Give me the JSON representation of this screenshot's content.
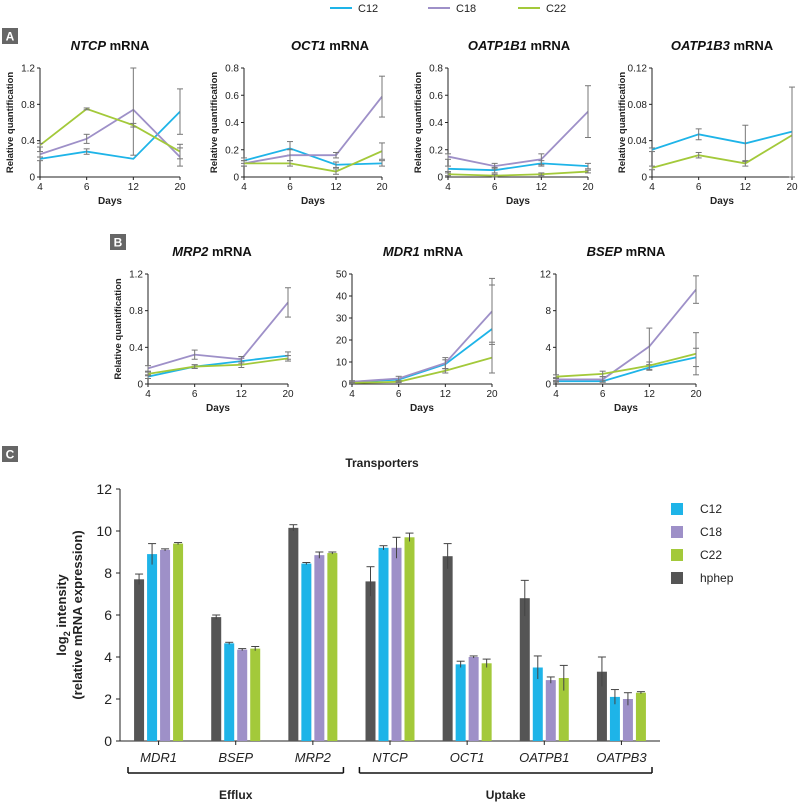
{
  "colors": {
    "C12": "#1eb4e8",
    "C18": "#9e90c8",
    "C22": "#a3c93a",
    "hphep": "#555555",
    "axis": "#222222",
    "error": "#777777"
  },
  "legend_top": [
    {
      "key": "C12",
      "label": "C12"
    },
    {
      "key": "C18",
      "label": "C18"
    },
    {
      "key": "C22",
      "label": "C22"
    }
  ],
  "panels": {
    "A": {
      "letter": "A"
    },
    "B": {
      "letter": "B"
    },
    "C": {
      "letter": "C"
    }
  },
  "line_charts": [
    {
      "id": "ntcp",
      "panel": "A",
      "gene": "NTCP",
      "suffix": " mRNA",
      "ylabel": "Relative quantification",
      "xlabel": "Days",
      "xcats": [
        "4",
        "6",
        "12",
        "20"
      ],
      "ylim": [
        0,
        1.2
      ],
      "yticks": [
        0,
        0.4,
        0.8,
        1.2
      ],
      "ytick_labels": [
        "0",
        "0.4",
        "0.8",
        "1.2"
      ],
      "series": [
        {
          "key": "C12",
          "values": [
            0.2,
            0.28,
            0.2,
            0.72
          ],
          "errors": [
            0.02,
            0.03,
            0.0,
            0.25
          ]
        },
        {
          "key": "C18",
          "values": [
            0.25,
            0.42,
            0.74,
            0.22
          ],
          "errors": [
            0.03,
            0.05,
            0.5,
            0.1
          ]
        },
        {
          "key": "C22",
          "values": [
            0.35,
            0.75,
            0.57,
            0.28
          ],
          "errors": [
            0.02,
            0.01,
            0.02,
            0.08
          ]
        }
      ]
    },
    {
      "id": "oct1",
      "panel": "A",
      "gene": "OCT1",
      "suffix": " mRNA",
      "ylabel": "Relative quantification",
      "xlabel": "Days",
      "xcats": [
        "4",
        "6",
        "12",
        "20"
      ],
      "ylim": [
        0,
        0.8
      ],
      "yticks": [
        0,
        0.2,
        0.4,
        0.6,
        0.8
      ],
      "ytick_labels": [
        "0",
        "0.2",
        "0.4",
        "0.6",
        "0.8"
      ],
      "series": [
        {
          "key": "C12",
          "values": [
            0.12,
            0.21,
            0.09,
            0.1
          ],
          "errors": [
            0.02,
            0.05,
            0.02,
            0.02
          ]
        },
        {
          "key": "C18",
          "values": [
            0.1,
            0.16,
            0.16,
            0.59
          ],
          "errors": [
            0.02,
            0.04,
            0.02,
            0.15
          ]
        },
        {
          "key": "C22",
          "values": [
            0.1,
            0.1,
            0.04,
            0.19
          ],
          "errors": [
            0.02,
            0.02,
            0.02,
            0.06
          ]
        }
      ]
    },
    {
      "id": "oatp1b1",
      "panel": "A",
      "gene": "OATP1B1",
      "suffix": " mRNA",
      "ylabel": "Relative quantification",
      "xlabel": "Days",
      "xcats": [
        "4",
        "6",
        "12",
        "20"
      ],
      "ylim": [
        0,
        0.8
      ],
      "yticks": [
        0,
        0.2,
        0.4,
        0.6,
        0.8
      ],
      "ytick_labels": [
        "0",
        "0.2",
        "0.4",
        "0.6",
        "0.8"
      ],
      "series": [
        {
          "key": "C12",
          "values": [
            0.06,
            0.05,
            0.1,
            0.08
          ],
          "errors": [
            0.02,
            0.02,
            0.02,
            0.02
          ]
        },
        {
          "key": "C18",
          "values": [
            0.15,
            0.08,
            0.13,
            0.48
          ],
          "errors": [
            0.02,
            0.02,
            0.04,
            0.19
          ]
        },
        {
          "key": "C22",
          "values": [
            0.02,
            0.01,
            0.02,
            0.04
          ],
          "errors": [
            0.01,
            0.01,
            0.01,
            0.01
          ]
        }
      ]
    },
    {
      "id": "oatp1b3",
      "panel": "A",
      "gene": "OATP1B3",
      "suffix": " mRNA",
      "ylabel": "Relative quantification",
      "xlabel": "Days",
      "xcats": [
        "4",
        "6",
        "12",
        "20"
      ],
      "ylim": [
        0,
        0.12
      ],
      "yticks": [
        0,
        0.04,
        0.08,
        0.12
      ],
      "ytick_labels": [
        "0",
        "0.04",
        "0.08",
        "0.12"
      ],
      "series": [
        {
          "key": "C12",
          "values": [
            0.03,
            0.047,
            0.037,
            0.05
          ],
          "errors": [
            0.002,
            0.006,
            0.02,
            0.0
          ]
        },
        {
          "key": "C18",
          "values": [
            null,
            null,
            null,
            null
          ],
          "errors": [
            null,
            null,
            null,
            null
          ]
        },
        {
          "key": "C22",
          "values": [
            0.01,
            0.024,
            0.015,
            0.046
          ],
          "errors": [
            0.002,
            0.003,
            0.003,
            0.053
          ]
        }
      ]
    },
    {
      "id": "mrp2",
      "panel": "B",
      "gene": "MRP2",
      "suffix": " mRNA",
      "ylabel": "Relative quantification",
      "xlabel": "Days",
      "xcats": [
        "4",
        "6",
        "12",
        "20"
      ],
      "ylim": [
        0,
        1.2
      ],
      "yticks": [
        0,
        0.4,
        0.8,
        1.2
      ],
      "ytick_labels": [
        "0",
        "0.4",
        "0.8",
        "1.2"
      ],
      "series": [
        {
          "key": "C12",
          "values": [
            0.08,
            0.19,
            0.25,
            0.31
          ],
          "errors": [
            0.02,
            0.02,
            0.03,
            0.04
          ]
        },
        {
          "key": "C18",
          "values": [
            0.17,
            0.32,
            0.27,
            0.89
          ],
          "errors": [
            0.03,
            0.05,
            0.03,
            0.16
          ]
        },
        {
          "key": "C22",
          "values": [
            0.11,
            0.19,
            0.21,
            0.28
          ],
          "errors": [
            0.02,
            0.02,
            0.03,
            0.03
          ]
        }
      ]
    },
    {
      "id": "mdr1",
      "panel": "B",
      "gene": "MDR1",
      "suffix": " mRNA",
      "ylabel": "",
      "xlabel": "Days",
      "xcats": [
        "4",
        "6",
        "12",
        "20"
      ],
      "ylim": [
        0,
        50
      ],
      "yticks": [
        0,
        10,
        20,
        30,
        40,
        50
      ],
      "ytick_labels": [
        "0",
        "10",
        "20",
        "30",
        "40",
        "50"
      ],
      "series": [
        {
          "key": "C12",
          "values": [
            1,
            2,
            9,
            25
          ],
          "errors": [
            0.3,
            0.5,
            2,
            20
          ]
        },
        {
          "key": "C18",
          "values": [
            1,
            2.5,
            9.5,
            33
          ],
          "errors": [
            0.5,
            1,
            2.5,
            15
          ]
        },
        {
          "key": "C22",
          "values": [
            0.5,
            1,
            6,
            12
          ],
          "errors": [
            0.3,
            0.3,
            1,
            7
          ]
        }
      ]
    },
    {
      "id": "bsep",
      "panel": "B",
      "gene": "BSEP",
      "suffix": " mRNA",
      "ylabel": "",
      "xlabel": "Days",
      "xcats": [
        "4",
        "6",
        "12",
        "20"
      ],
      "ylim": [
        0,
        12
      ],
      "yticks": [
        0,
        4,
        8,
        12
      ],
      "ytick_labels": [
        "0",
        "4",
        "8",
        "12"
      ],
      "series": [
        {
          "key": "C12",
          "values": [
            0.3,
            0.3,
            1.8,
            2.9
          ],
          "errors": [
            0.1,
            0.1,
            0.3,
            1.0
          ]
        },
        {
          "key": "C18",
          "values": [
            0.5,
            0.5,
            4.1,
            10.3
          ],
          "errors": [
            0.2,
            0.3,
            2.0,
            1.5
          ]
        },
        {
          "key": "C22",
          "values": [
            0.8,
            1.1,
            2.0,
            3.3
          ],
          "errors": [
            0.2,
            0.3,
            0.4,
            2.3
          ]
        }
      ]
    }
  ],
  "chart_data": {
    "type": "bar",
    "title": "Transporters",
    "ylabel_line1": "log",
    "ylabel_sub": "2",
    "ylabel_line1_rest": " intensity",
    "ylabel_line2": "(relative mRNA expression)",
    "ylim": [
      0,
      12
    ],
    "yticks": [
      "0",
      "2",
      "4",
      "6",
      "8",
      "10",
      "12"
    ],
    "categories": [
      "MDR1",
      "BSEP",
      "MRP2",
      "NTCP",
      "OCT1",
      "OATPB1",
      "OATPB3"
    ],
    "series": [
      {
        "name": "hphep",
        "key": "hphep",
        "values": [
          7.7,
          5.9,
          10.15,
          7.6,
          8.8,
          6.8,
          3.3
        ],
        "errors": [
          0.25,
          0.1,
          0.15,
          0.7,
          0.6,
          0.85,
          0.7
        ]
      },
      {
        "name": "C12",
        "key": "C12",
        "values": [
          8.9,
          4.65,
          8.45,
          9.2,
          3.65,
          3.5,
          2.1
        ],
        "errors": [
          0.5,
          0.05,
          0.05,
          0.1,
          0.15,
          0.55,
          0.35
        ]
      },
      {
        "name": "C18",
        "key": "C18",
        "values": [
          9.1,
          4.35,
          8.85,
          9.2,
          4.0,
          2.9,
          2.0
        ],
        "errors": [
          0.05,
          0.05,
          0.15,
          0.5,
          0.05,
          0.15,
          0.3
        ]
      },
      {
        "name": "C22",
        "key": "C22",
        "values": [
          9.4,
          4.4,
          8.95,
          9.7,
          3.7,
          3.0,
          2.3
        ],
        "errors": [
          0.05,
          0.1,
          0.05,
          0.2,
          0.2,
          0.6,
          0.05
        ]
      }
    ],
    "legend": [
      {
        "key": "C12",
        "label": "C12"
      },
      {
        "key": "C18",
        "label": "C18"
      },
      {
        "key": "C22",
        "label": "C22"
      },
      {
        "key": "hphep",
        "label": "hphep"
      }
    ],
    "groups": [
      {
        "label": "Efflux",
        "from": 0,
        "to": 2
      },
      {
        "label": "Uptake",
        "from": 3,
        "to": 6
      }
    ]
  }
}
